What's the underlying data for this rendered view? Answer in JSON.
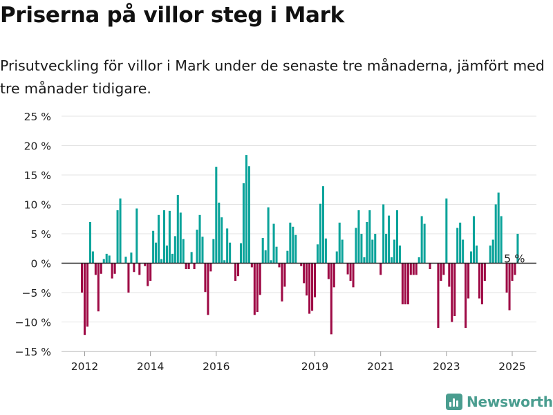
{
  "title": "Priserna på villor steg i Mark",
  "subtitle": "Prisutveckling för villor i Mark under de senaste tre månaderna, jämfört med tre månader tidigare.",
  "brand": "Newsworthy",
  "colors": {
    "positive": "#0aa39a",
    "negative": "#9e0a45",
    "grid": "#e3e3e3",
    "zero": "#222222",
    "brand": "#4a9d8f"
  },
  "chart_data": {
    "type": "bar",
    "x_start": "2011-12",
    "frequency": "monthly",
    "ylim": [
      -15,
      25
    ],
    "yticks": [
      -15,
      -10,
      -5,
      0,
      5,
      10,
      15,
      20,
      25
    ],
    "ytick_labels": [
      "−15 %",
      "−10 %",
      "−5 %",
      "0 %",
      "5 %",
      "10 %",
      "15 %",
      "20 %",
      "25 %"
    ],
    "xticks": [
      "2012-01",
      "2014-01",
      "2016-01",
      "2019-01",
      "2021-01",
      "2023-01",
      "2025-01"
    ],
    "xtick_labels": [
      "2012",
      "2014",
      "2016",
      "2019",
      "2021",
      "2023",
      "2025"
    ],
    "annotation": {
      "date": "2025-02",
      "label": "5 %"
    },
    "values": [
      -5,
      -12.2,
      -10.8,
      7,
      2,
      -2,
      -8.2,
      -1.8,
      0.7,
      1.6,
      1.3,
      -2.6,
      -1.8,
      9,
      11,
      0,
      1.1,
      -5,
      1.8,
      -1.5,
      9.3,
      -2,
      0,
      -0.5,
      -3.9,
      -3,
      5.5,
      3.5,
      8.2,
      0.7,
      9,
      3,
      8.9,
      1.6,
      4.6,
      11.6,
      8.6,
      4.1,
      -1,
      -1,
      1.9,
      -1,
      5.7,
      8.2,
      4.5,
      -4.9,
      -8.8,
      -1.4,
      4.1,
      16.4,
      10.3,
      7.8,
      0.5,
      5.9,
      3.5,
      0,
      -3,
      -2.2,
      3.4,
      13.6,
      18.4,
      16.5,
      -0.7,
      -8.8,
      -8.3,
      -5.4,
      4.3,
      2.2,
      9.5,
      0.5,
      6.7,
      2.8,
      -0.7,
      -6.5,
      -4,
      2.1,
      6.9,
      6.2,
      4.8,
      0,
      -0.5,
      -3.4,
      -5.5,
      -8.6,
      -8.1,
      -5.8,
      3.2,
      10.1,
      13.1,
      4.2,
      -2.7,
      -12.1,
      -4.1,
      2,
      6.9,
      4,
      0,
      -1.9,
      -3,
      -4.1,
      6,
      9,
      5,
      1,
      7,
      9,
      4,
      5,
      0,
      -2,
      10,
      5,
      8.1,
      1,
      4,
      9,
      3,
      -7,
      -7,
      -7,
      -2,
      -2,
      -2,
      1,
      8,
      6.7,
      0,
      -1,
      0,
      0,
      -11,
      -3,
      -2,
      11,
      -4,
      -10,
      -9,
      6,
      6.9,
      4,
      -11,
      -6,
      2,
      8,
      3,
      -6,
      -7,
      -3,
      0,
      3,
      4,
      10,
      12,
      8,
      0,
      -5,
      -8,
      -3,
      -2,
      5
    ]
  }
}
